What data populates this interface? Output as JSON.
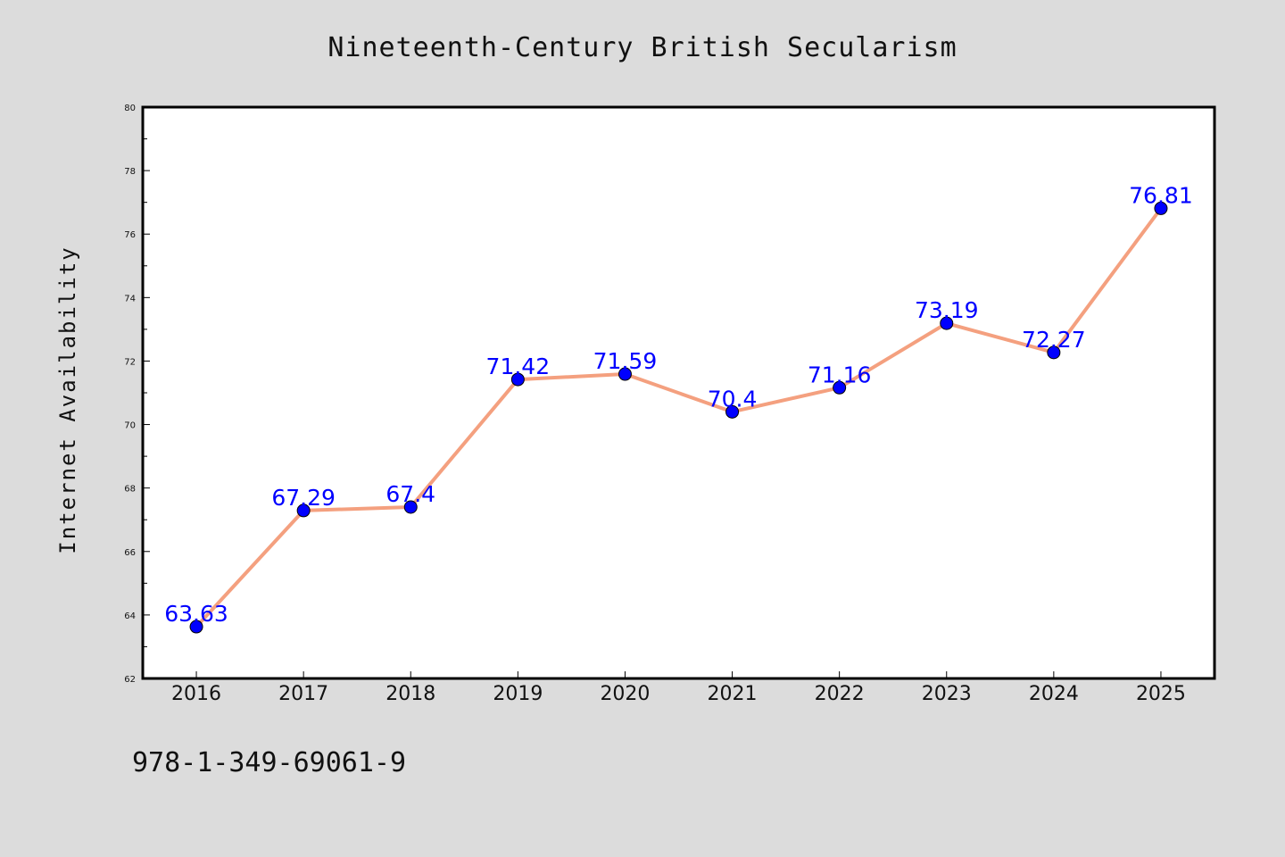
{
  "chart_data": {
    "type": "line",
    "title": "Nineteenth-Century British Secularism",
    "xlabel": "",
    "ylabel": "Internet Availability",
    "categories": [
      "2016",
      "2017",
      "2018",
      "2019",
      "2020",
      "2021",
      "2022",
      "2023",
      "2024",
      "2025"
    ],
    "series": [
      {
        "values": [
          63.63,
          67.29,
          67.4,
          71.42,
          71.59,
          70.4,
          71.16,
          73.19,
          72.27,
          76.81
        ],
        "data_labels": [
          "63.63",
          "67.29",
          "67.4",
          "71.42",
          "71.59",
          "70.4",
          "71.16",
          "73.19",
          "72.27",
          "76.81"
        ],
        "line_color": "#f4a07f",
        "marker_color": "#0000ff"
      }
    ],
    "ylim": [
      62,
      80
    ],
    "yticks": [
      "62",
      "64",
      "66",
      "68",
      "70",
      "72",
      "74",
      "76",
      "78",
      "80"
    ],
    "grid": false,
    "legend": "none",
    "background_color": "#dcdcdc",
    "plot_background_color": "#ffffff"
  },
  "footnote": "978-1-349-69061-9"
}
